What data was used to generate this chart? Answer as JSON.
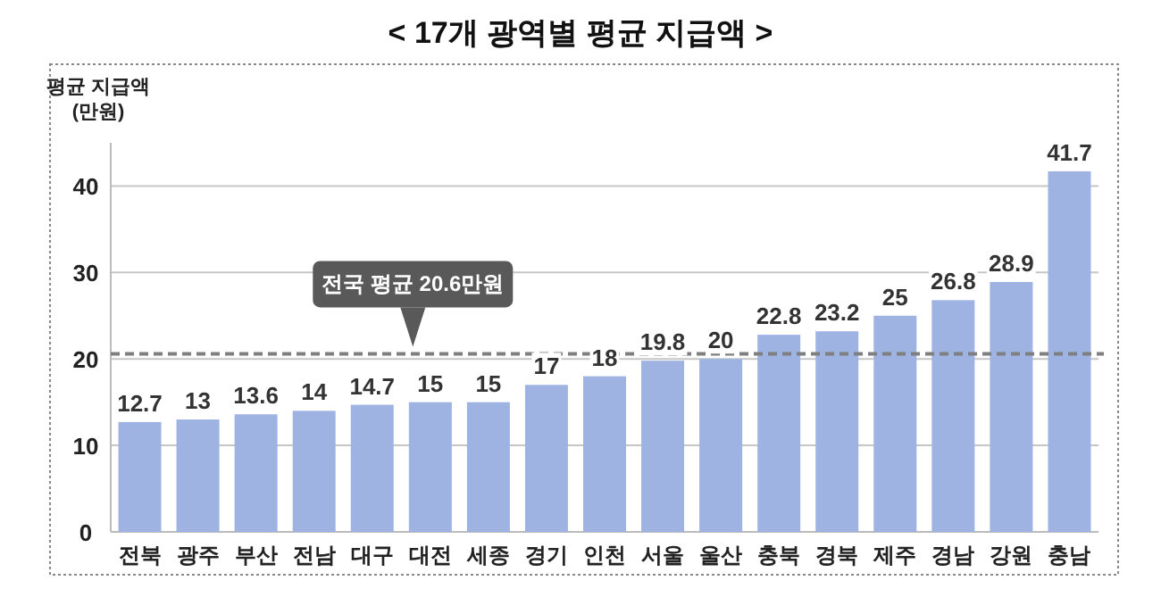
{
  "chart_data": {
    "type": "bar",
    "title": "< 17개 광역별 평균 지급액 >",
    "ylabel": "평균 지급액\n(만원)",
    "categories": [
      "전북",
      "광주",
      "부산",
      "전남",
      "대구",
      "대전",
      "세종",
      "경기",
      "인천",
      "서울",
      "울산",
      "충북",
      "경북",
      "제주",
      "경남",
      "강원",
      "충남"
    ],
    "values": [
      12.7,
      13,
      13.6,
      14,
      14.7,
      15,
      15,
      17,
      18,
      19.8,
      20,
      22.8,
      23.2,
      25,
      26.8,
      28.9,
      41.7
    ],
    "color": "#9fb3e3",
    "ylim": [
      0,
      45
    ],
    "yticks": [
      0,
      10,
      20,
      30,
      40
    ],
    "grid": "y",
    "data_labels": true,
    "ref_lines": [
      {
        "axis": "y",
        "value": 20.6,
        "label": "전국 평균 20.6만원",
        "color": "#7f7f7f",
        "line_style": "dashed"
      }
    ]
  }
}
